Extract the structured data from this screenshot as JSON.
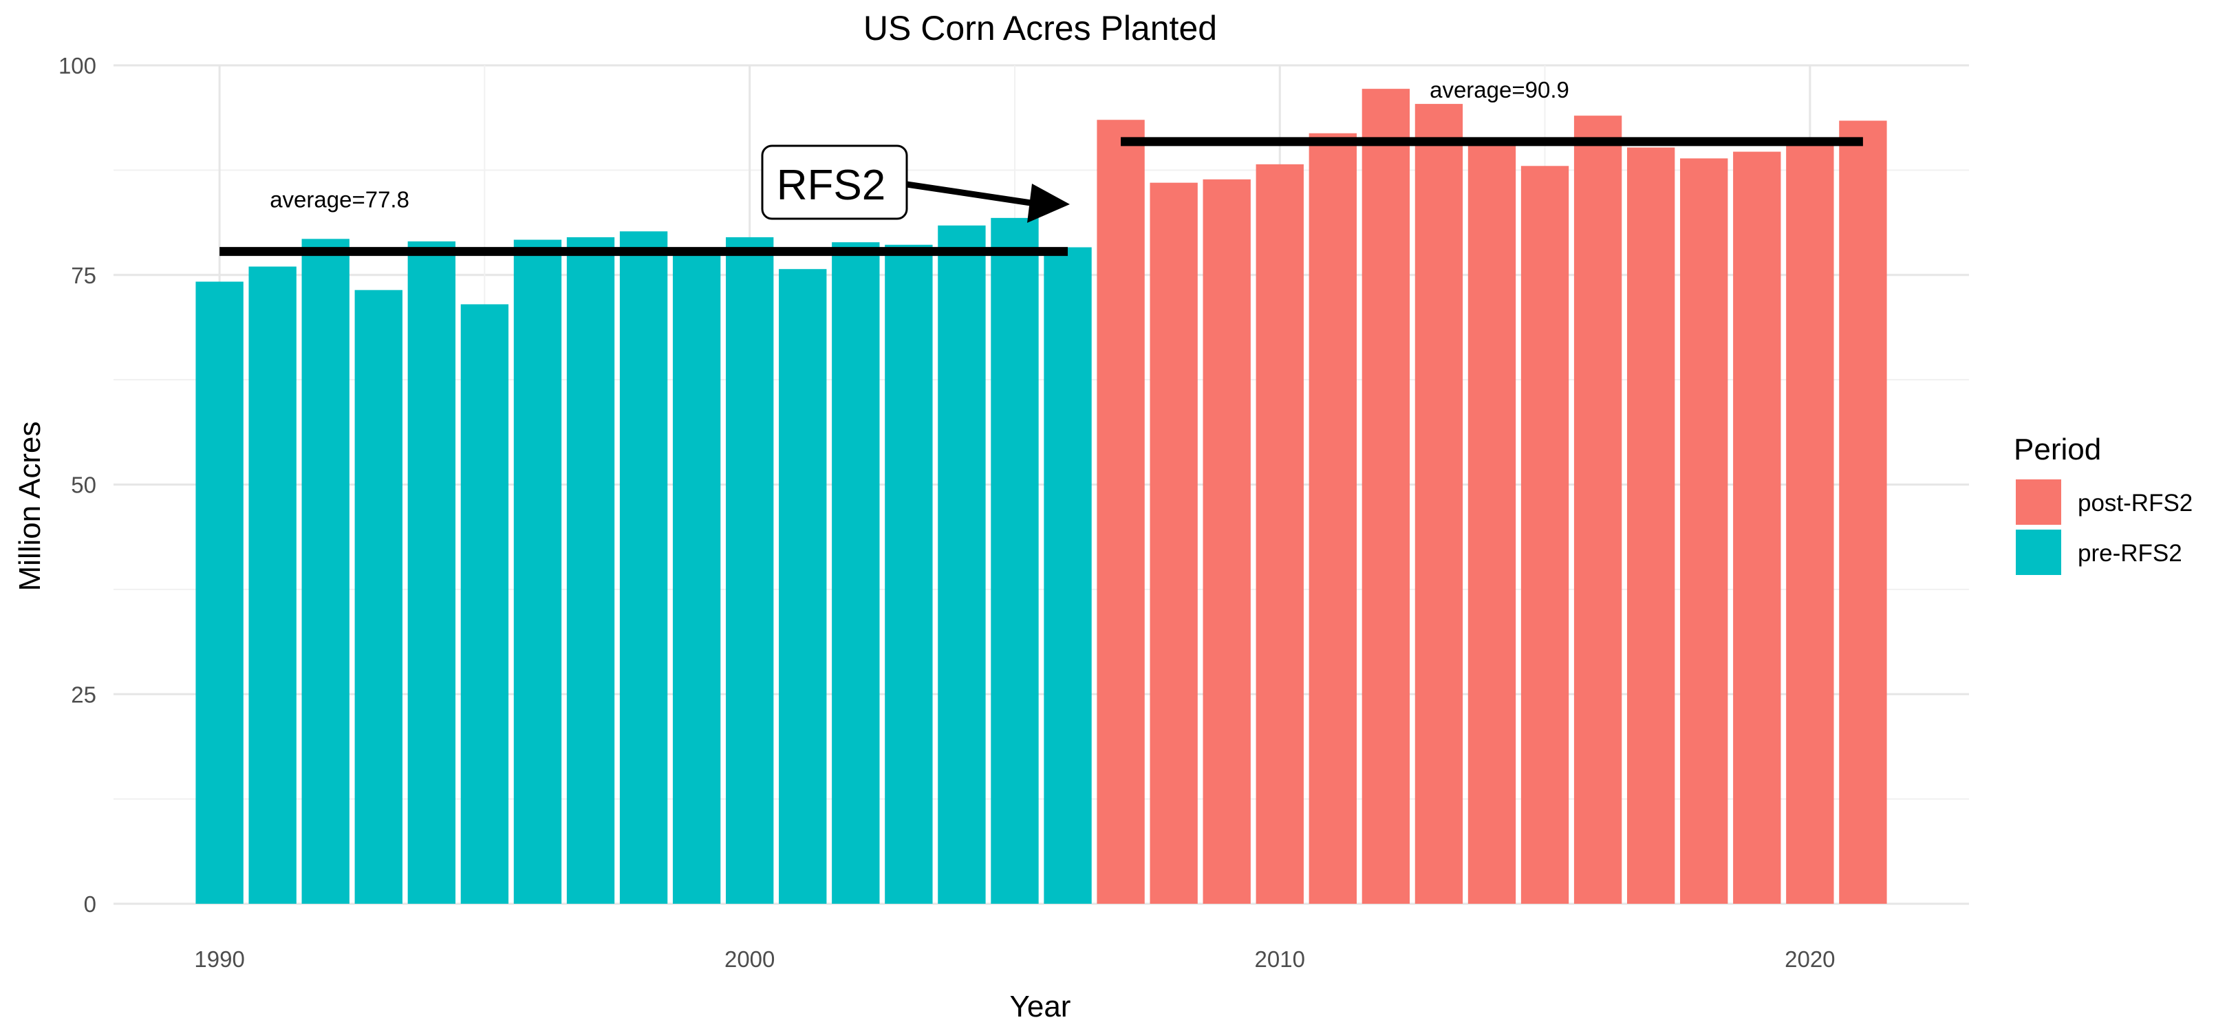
{
  "chart_data": {
    "type": "bar",
    "title": "US Corn Acres Planted",
    "xlabel": "Year",
    "ylabel": "Million Acres",
    "x_ticks": [
      "1990",
      "2000",
      "2010",
      "2020"
    ],
    "y_ticks": [
      "0",
      "25",
      "50",
      "75",
      "100"
    ],
    "ylim": [
      0,
      100
    ],
    "xlim": [
      1988,
      2023
    ],
    "grid": true,
    "legend": {
      "title": "Period",
      "position": "right",
      "entries": [
        {
          "label": "post-RFS2",
          "color": "#F8766D"
        },
        {
          "label": "pre-RFS2",
          "color": "#00BFC4"
        }
      ]
    },
    "series": [
      {
        "name": "pre-RFS2",
        "color": "#00BFC4",
        "x": [
          1990,
          1991,
          1992,
          1993,
          1994,
          1995,
          1996,
          1997,
          1998,
          1999,
          2000,
          2001,
          2002,
          2003,
          2004,
          2005,
          2006
        ],
        "values": [
          74.2,
          76.0,
          79.3,
          73.2,
          79.0,
          71.5,
          79.2,
          79.5,
          80.2,
          77.4,
          79.5,
          75.7,
          78.9,
          78.6,
          80.9,
          81.8,
          78.3
        ]
      },
      {
        "name": "post-RFS2",
        "color": "#F8766D",
        "x": [
          2007,
          2008,
          2009,
          2010,
          2011,
          2012,
          2013,
          2014,
          2015,
          2016,
          2017,
          2018,
          2019,
          2020,
          2021
        ],
        "values": [
          93.5,
          86.0,
          86.4,
          88.2,
          91.9,
          97.2,
          95.4,
          90.6,
          88.0,
          94.0,
          90.2,
          88.9,
          89.7,
          90.8,
          93.4
        ]
      }
    ],
    "reference_lines": [
      {
        "label": "average=77.8",
        "value": 77.8,
        "x_start": 1990,
        "x_end": 2006
      },
      {
        "label": "average=90.9",
        "value": 90.9,
        "x_start": 2007,
        "x_end": 2021
      }
    ],
    "callout": {
      "label": "RFS2",
      "points_to_year": 2007
    }
  }
}
